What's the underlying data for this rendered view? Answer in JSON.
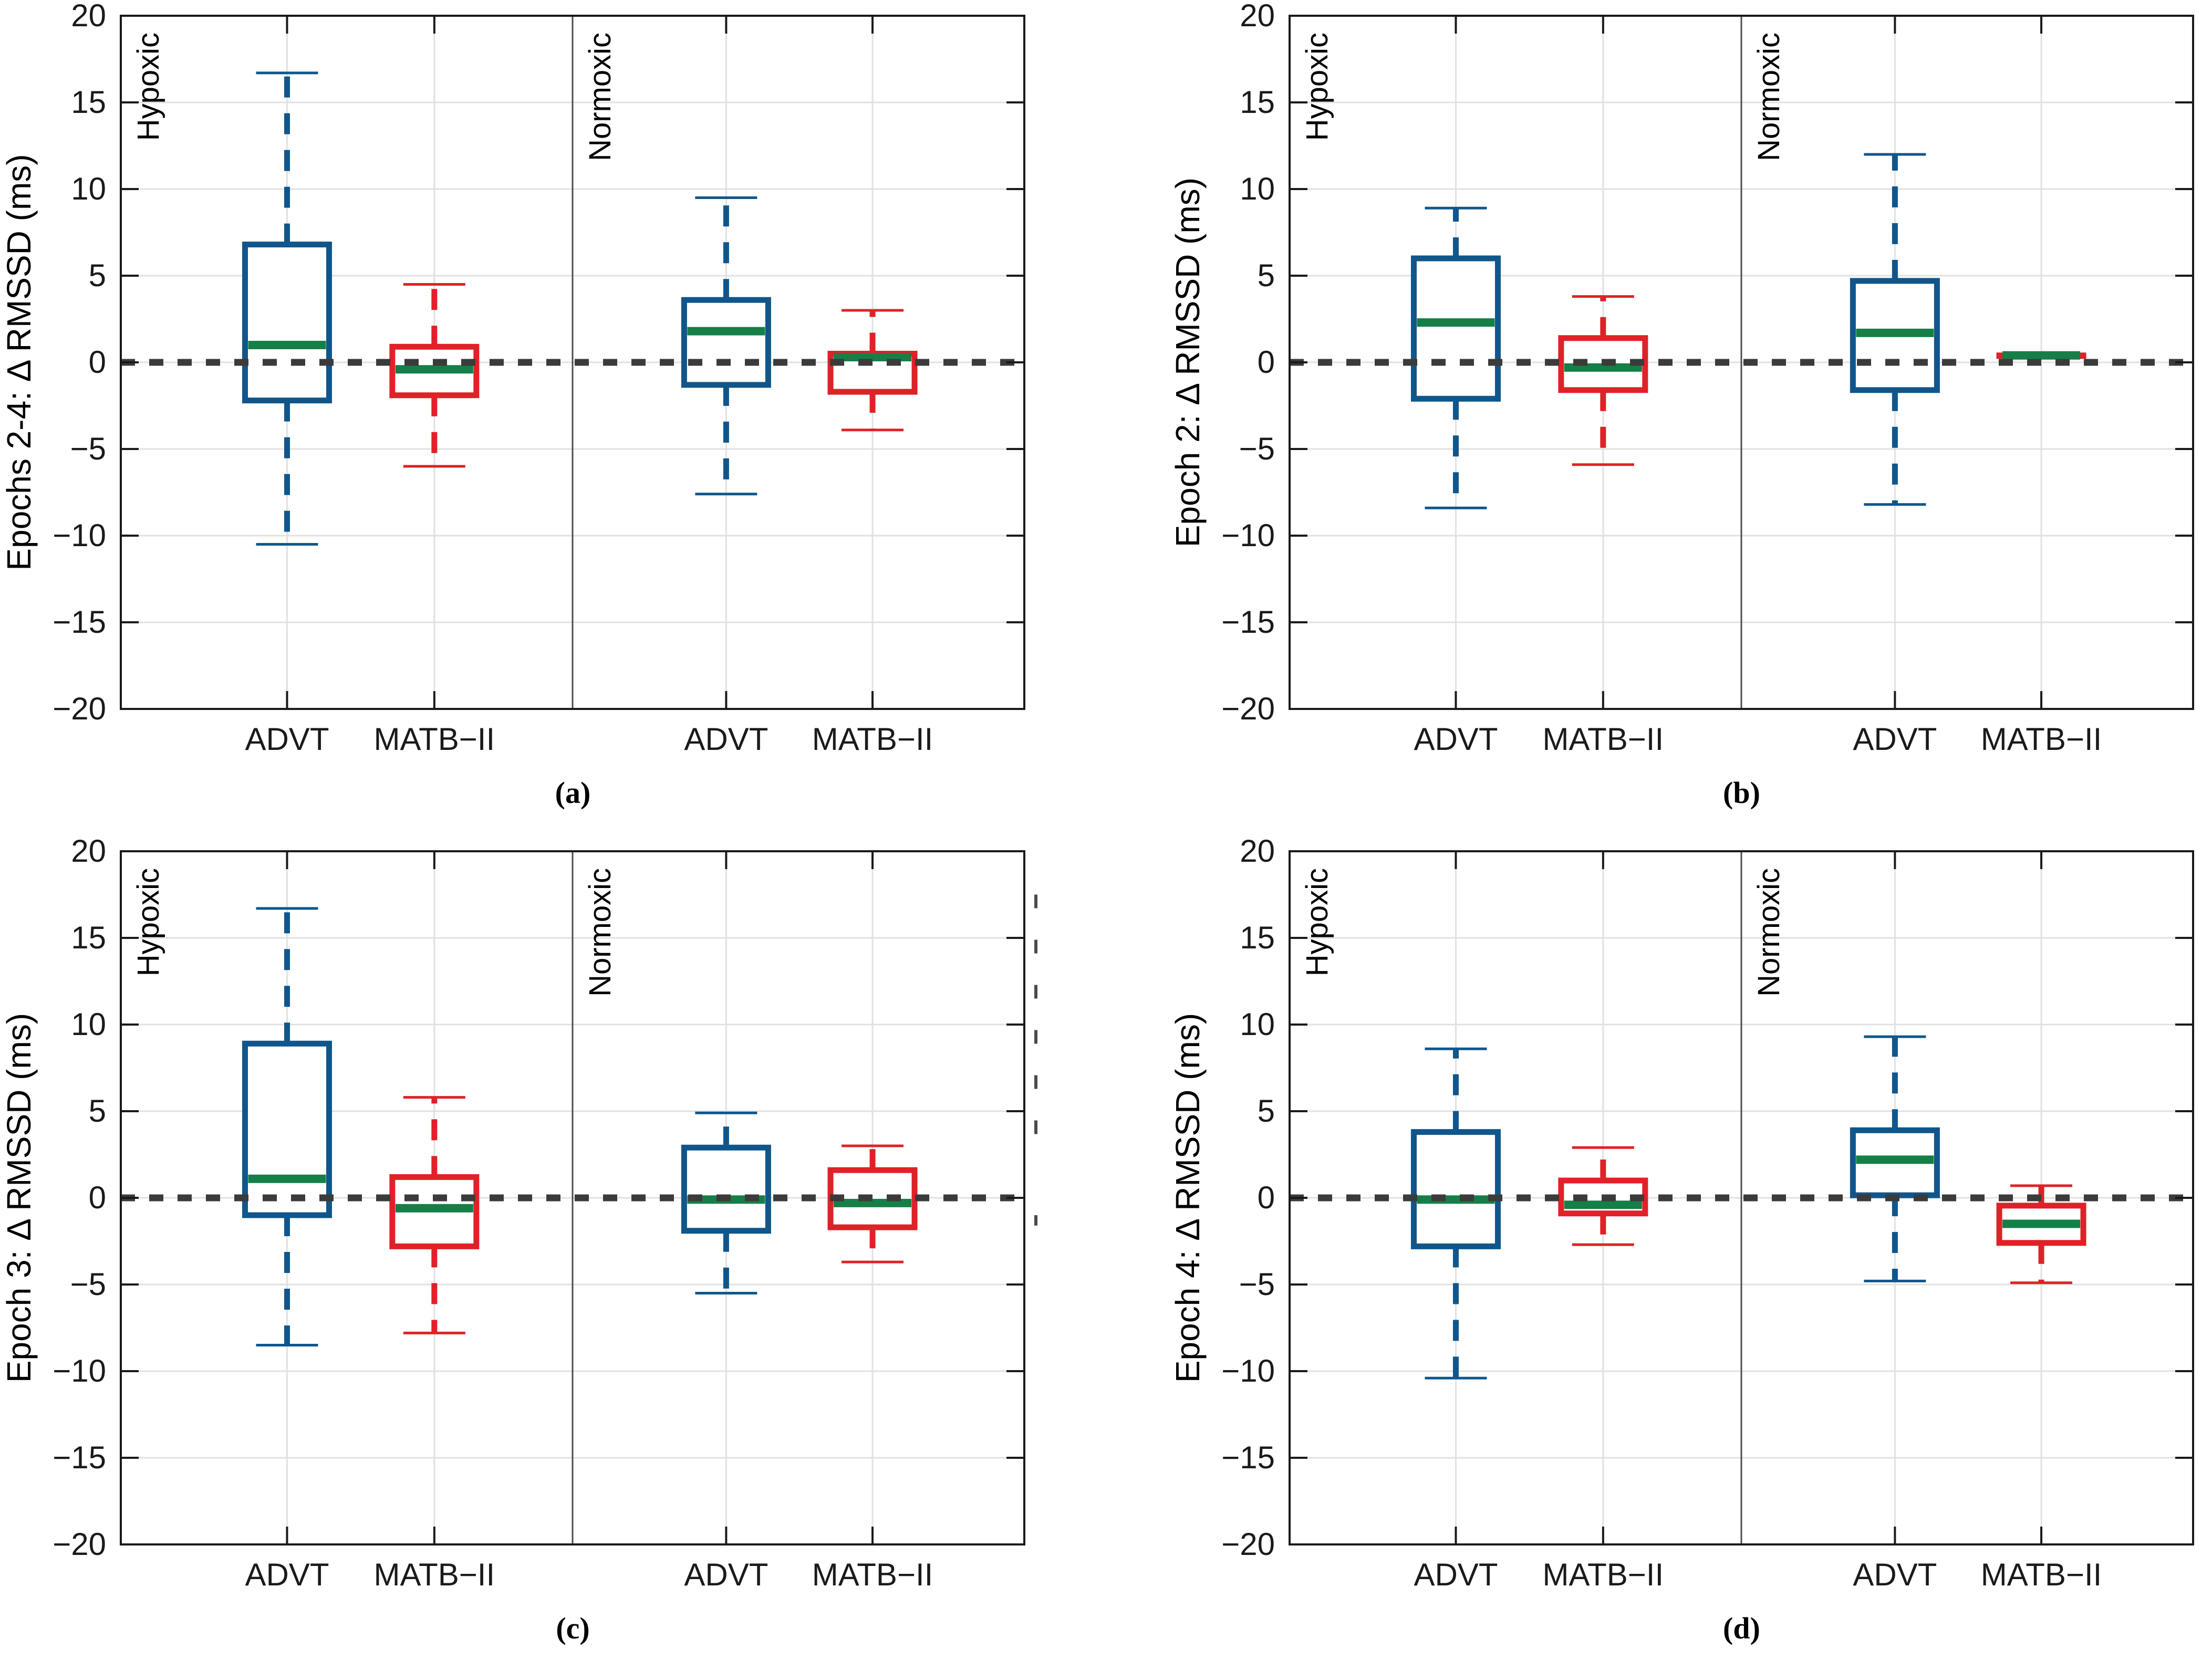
{
  "figure": {
    "background": "#FFFFFF",
    "description": "Boxplots of change in RMSSD for ADVT and MATB-II tasks under Hypoxic and Normoxic conditions across epochs"
  },
  "styles": {
    "advt_color": "#10568B",
    "matb_color": "#E02127",
    "median_color": "#157F47",
    "zero_line_color": "#3B3B3B",
    "grid_color": "#E1E1E1",
    "axis_color": "#1A1A1A",
    "divider_color": "#4D4D4D",
    "tick_label_color": "#333333",
    "artifact_color": "#4A4A4A"
  },
  "chart_data": [
    {
      "id": "a",
      "type": "boxplot",
      "caption": "(a)",
      "ylabel": "Epochs 2-4: Δ RMSSD (ms)",
      "ylim": [
        -20,
        20
      ],
      "yticks": [
        20,
        15,
        10,
        5,
        0,
        -5,
        -10,
        -15,
        -20
      ],
      "zero_reference_line": true,
      "groups": [
        "Hypoxic",
        "Normoxic"
      ],
      "xticklabels": [
        "ADVT",
        "MATB-II",
        "ADVT",
        "MATB-II"
      ],
      "boxes": [
        {
          "group": "Hypoxic",
          "task": "ADVT",
          "whisker_low": -10.5,
          "q1": -2.2,
          "median": 1.0,
          "q3": 6.8,
          "whisker_high": 16.7
        },
        {
          "group": "Hypoxic",
          "task": "MATB-II",
          "whisker_low": -6.0,
          "q1": -1.9,
          "median": -0.4,
          "q3": 0.9,
          "whisker_high": 4.5
        },
        {
          "group": "Normoxic",
          "task": "ADVT",
          "whisker_low": -7.6,
          "q1": -1.3,
          "median": 1.8,
          "q3": 3.6,
          "whisker_high": 9.5
        },
        {
          "group": "Normoxic",
          "task": "MATB-II",
          "whisker_low": -3.9,
          "q1": -1.7,
          "median": 0.3,
          "q3": 0.5,
          "whisker_high": 3.0
        }
      ]
    },
    {
      "id": "b",
      "type": "boxplot",
      "caption": "(b)",
      "ylabel": "Epoch 2: Δ RMSSD (ms)",
      "ylim": [
        -20,
        20
      ],
      "yticks": [
        20,
        15,
        10,
        5,
        0,
        -5,
        -10,
        -15,
        -20
      ],
      "zero_reference_line": true,
      "groups": [
        "Hypoxic",
        "Normoxic"
      ],
      "xticklabels": [
        "ADVT",
        "MATB-II",
        "ADVT",
        "MATB-II"
      ],
      "boxes": [
        {
          "group": "Hypoxic",
          "task": "ADVT",
          "whisker_low": -8.4,
          "q1": -2.1,
          "median": 2.3,
          "q3": 6.0,
          "whisker_high": 8.9
        },
        {
          "group": "Hypoxic",
          "task": "MATB-II",
          "whisker_low": -5.9,
          "q1": -1.6,
          "median": -0.3,
          "q3": 1.4,
          "whisker_high": 3.8
        },
        {
          "group": "Normoxic",
          "task": "ADVT",
          "whisker_low": -8.2,
          "q1": -1.6,
          "median": 1.7,
          "q3": 4.7,
          "whisker_high": 12.0
        },
        {
          "group": "Normoxic",
          "task": "MATB-II",
          "whisker_low": 0.4,
          "q1": 0.4,
          "median": 0.4,
          "q3": 0.4,
          "whisker_high": 0.4
        }
      ]
    },
    {
      "id": "c",
      "type": "boxplot",
      "caption": "(c)",
      "ylabel": "Epoch 3: Δ RMSSD (ms)",
      "ylim": [
        -20,
        20
      ],
      "yticks": [
        20,
        15,
        10,
        5,
        0,
        -5,
        -10,
        -15,
        -20
      ],
      "zero_reference_line": true,
      "groups": [
        "Hypoxic",
        "Normoxic"
      ],
      "xticklabels": [
        "ADVT",
        "MATB-II",
        "ADVT",
        "MATB-II"
      ],
      "has_edge_artifact": true,
      "boxes": [
        {
          "group": "Hypoxic",
          "task": "ADVT",
          "whisker_low": -8.5,
          "q1": -1.0,
          "median": 1.1,
          "q3": 8.9,
          "whisker_high": 16.7
        },
        {
          "group": "Hypoxic",
          "task": "MATB-II",
          "whisker_low": -7.8,
          "q1": -2.8,
          "median": -0.6,
          "q3": 1.2,
          "whisker_high": 5.8
        },
        {
          "group": "Normoxic",
          "task": "ADVT",
          "whisker_low": -5.5,
          "q1": -1.9,
          "median": -0.1,
          "q3": 2.9,
          "whisker_high": 4.9
        },
        {
          "group": "Normoxic",
          "task": "MATB-II",
          "whisker_low": -3.7,
          "q1": -1.7,
          "median": -0.3,
          "q3": 1.6,
          "whisker_high": 3.0
        }
      ]
    },
    {
      "id": "d",
      "type": "boxplot",
      "caption": "(d)",
      "ylabel": "Epoch 4: Δ RMSSD (ms)",
      "ylim": [
        -20,
        20
      ],
      "yticks": [
        20,
        15,
        10,
        5,
        0,
        -5,
        -10,
        -15,
        -20
      ],
      "zero_reference_line": true,
      "groups": [
        "Hypoxic",
        "Normoxic"
      ],
      "xticklabels": [
        "ADVT",
        "MATB-II",
        "ADVT",
        "MATB-II"
      ],
      "boxes": [
        {
          "group": "Hypoxic",
          "task": "ADVT",
          "whisker_low": -10.4,
          "q1": -2.8,
          "median": -0.1,
          "q3": 3.8,
          "whisker_high": 8.6
        },
        {
          "group": "Hypoxic",
          "task": "MATB-II",
          "whisker_low": -2.7,
          "q1": -0.9,
          "median": -0.4,
          "q3": 1.0,
          "whisker_high": 2.9
        },
        {
          "group": "Normoxic",
          "task": "ADVT",
          "whisker_low": -4.8,
          "q1": 0.15,
          "median": 2.2,
          "q3": 3.9,
          "whisker_high": 9.3
        },
        {
          "group": "Normoxic",
          "task": "MATB-II",
          "whisker_low": -4.9,
          "q1": -2.6,
          "median": -1.5,
          "q3": -0.45,
          "whisker_high": 0.7
        }
      ]
    }
  ]
}
